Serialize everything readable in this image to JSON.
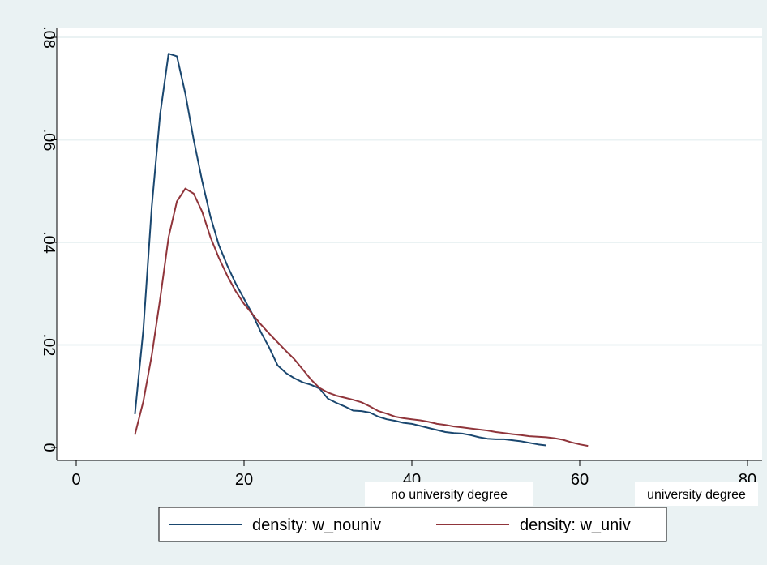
{
  "chart_data": {
    "type": "line",
    "xlim": [
      0,
      80
    ],
    "ylim": [
      0,
      0.08
    ],
    "x_ticks": [
      0,
      20,
      40,
      60,
      80
    ],
    "x_tick_labels": [
      "0",
      "20",
      "40",
      "60",
      "80"
    ],
    "y_ticks": [
      0,
      0.02,
      0.04,
      0.06,
      0.08
    ],
    "y_tick_labels": [
      "0",
      ".02",
      ".04",
      ".06",
      ".08"
    ],
    "grid": true,
    "legend_position": "bottom",
    "annotations": [
      "no university degree",
      "university degree"
    ],
    "series": [
      {
        "name": "density: w_nouniv",
        "color": "#1a476f",
        "points": [
          [
            7,
            0.0065
          ],
          [
            8,
            0.023
          ],
          [
            9,
            0.047
          ],
          [
            10,
            0.065
          ],
          [
            11,
            0.0768
          ],
          [
            12,
            0.0763
          ],
          [
            13,
            0.069
          ],
          [
            14,
            0.06
          ],
          [
            15,
            0.052
          ],
          [
            16,
            0.045
          ],
          [
            17,
            0.0395
          ],
          [
            18,
            0.0355
          ],
          [
            19,
            0.032
          ],
          [
            20,
            0.029
          ],
          [
            21,
            0.026
          ],
          [
            22,
            0.0225
          ],
          [
            23,
            0.0195
          ],
          [
            24,
            0.016
          ],
          [
            25,
            0.0145
          ],
          [
            26,
            0.0135
          ],
          [
            27,
            0.0127
          ],
          [
            28,
            0.0122
          ],
          [
            29,
            0.0115
          ],
          [
            30,
            0.0095
          ],
          [
            31,
            0.0087
          ],
          [
            32,
            0.008
          ],
          [
            33,
            0.0072
          ],
          [
            34,
            0.0071
          ],
          [
            35,
            0.0068
          ],
          [
            36,
            0.006
          ],
          [
            37,
            0.0055
          ],
          [
            38,
            0.0052
          ],
          [
            39,
            0.0048
          ],
          [
            40,
            0.0046
          ],
          [
            41,
            0.0042
          ],
          [
            42,
            0.0038
          ],
          [
            43,
            0.0034
          ],
          [
            44,
            0.003
          ],
          [
            45,
            0.0028
          ],
          [
            46,
            0.0027
          ],
          [
            47,
            0.0024
          ],
          [
            48,
            0.002
          ],
          [
            49,
            0.0017
          ],
          [
            50,
            0.0016
          ],
          [
            51,
            0.0016
          ],
          [
            52,
            0.0014
          ],
          [
            53,
            0.0012
          ],
          [
            54,
            0.0009
          ],
          [
            55,
            0.0006
          ],
          [
            56,
            0.0004
          ]
        ]
      },
      {
        "name": "density: w_univ",
        "color": "#90353b",
        "points": [
          [
            7,
            0.0025
          ],
          [
            8,
            0.009
          ],
          [
            9,
            0.018
          ],
          [
            10,
            0.029
          ],
          [
            11,
            0.041
          ],
          [
            12,
            0.048
          ],
          [
            13,
            0.0505
          ],
          [
            14,
            0.0495
          ],
          [
            15,
            0.046
          ],
          [
            16,
            0.041
          ],
          [
            17,
            0.037
          ],
          [
            18,
            0.0335
          ],
          [
            19,
            0.0305
          ],
          [
            20,
            0.028
          ],
          [
            21,
            0.026
          ],
          [
            22,
            0.024
          ],
          [
            23,
            0.0222
          ],
          [
            24,
            0.0205
          ],
          [
            25,
            0.0188
          ],
          [
            26,
            0.0172
          ],
          [
            27,
            0.0152
          ],
          [
            28,
            0.0132
          ],
          [
            29,
            0.0116
          ],
          [
            30,
            0.0107
          ],
          [
            31,
            0.0101
          ],
          [
            32,
            0.0097
          ],
          [
            33,
            0.0093
          ],
          [
            34,
            0.0088
          ],
          [
            35,
            0.008
          ],
          [
            36,
            0.0071
          ],
          [
            37,
            0.0066
          ],
          [
            38,
            0.006
          ],
          [
            39,
            0.0057
          ],
          [
            40,
            0.0055
          ],
          [
            41,
            0.0053
          ],
          [
            42,
            0.005
          ],
          [
            43,
            0.0046
          ],
          [
            44,
            0.0044
          ],
          [
            45,
            0.0041
          ],
          [
            46,
            0.0039
          ],
          [
            47,
            0.0037
          ],
          [
            48,
            0.0035
          ],
          [
            49,
            0.0033
          ],
          [
            50,
            0.003
          ],
          [
            51,
            0.0028
          ],
          [
            52,
            0.0026
          ],
          [
            53,
            0.0024
          ],
          [
            54,
            0.0022
          ],
          [
            55,
            0.0021
          ],
          [
            56,
            0.002
          ],
          [
            57,
            0.0018
          ],
          [
            58,
            0.0015
          ],
          [
            59,
            0.001
          ],
          [
            60,
            0.0006
          ],
          [
            61,
            0.0003
          ]
        ]
      }
    ]
  }
}
